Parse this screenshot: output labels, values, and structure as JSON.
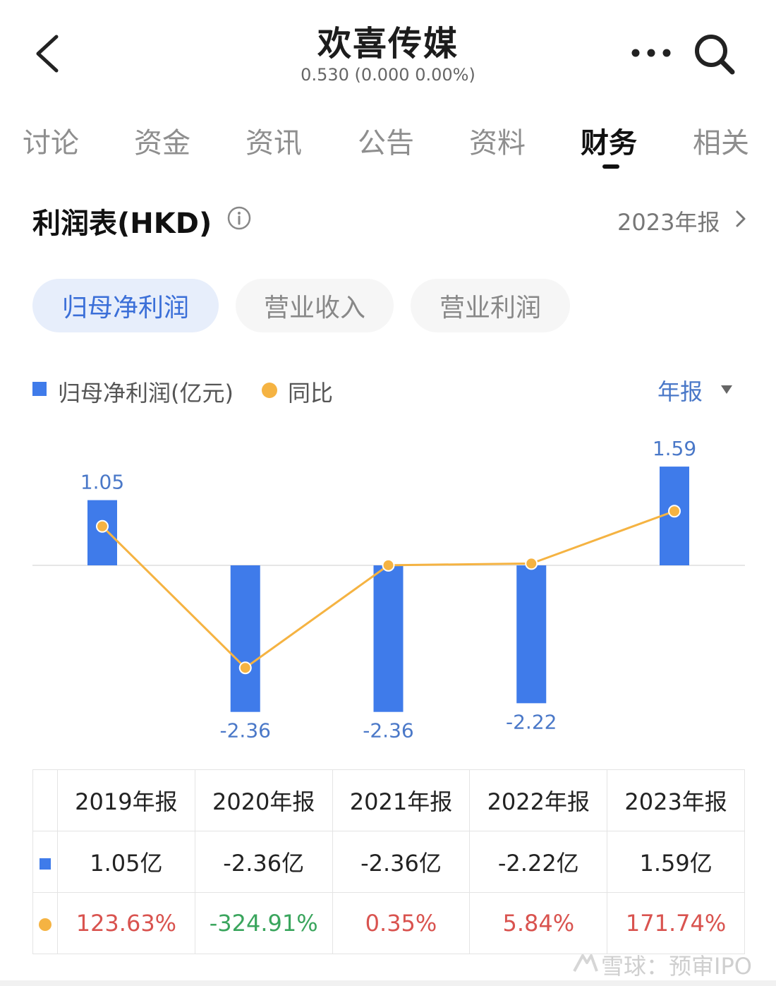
{
  "header": {
    "title": "欢喜传媒",
    "quote": "0.530 (0.000 0.00%)"
  },
  "tabs": [
    "讨论",
    "资金",
    "资讯",
    "公告",
    "资料",
    "财务",
    "相关"
  ],
  "active_tab": "财务",
  "section": {
    "title": "利润表(HKD)",
    "period": "2023年报"
  },
  "pills": [
    "归母净利润",
    "营业收入",
    "营业利润"
  ],
  "active_pill": "归母净利润",
  "legend": {
    "bar_label": "归母净利润(亿元)",
    "line_label": "同比",
    "frequency": "年报"
  },
  "colors": {
    "bar": "#3f7bea",
    "line": "#f5b342",
    "positive": "#d9534f",
    "negative": "#3aa55d",
    "accent": "#3b6fd8"
  },
  "chart_data": {
    "type": "bar",
    "categories": [
      "2019年报",
      "2020年报",
      "2021年报",
      "2022年报",
      "2023年报"
    ],
    "series": [
      {
        "name": "归母净利润(亿元)",
        "type": "bar",
        "values": [
          1.05,
          -2.36,
          -2.36,
          -2.22,
          1.59
        ],
        "labels": [
          "1.05",
          "-2.36",
          "-2.36",
          "-2.22",
          "1.59"
        ]
      },
      {
        "name": "同比",
        "type": "line",
        "values": [
          123.63,
          -324.91,
          0.35,
          5.84,
          171.74
        ]
      }
    ]
  },
  "table": {
    "headers": [
      "2019年报",
      "2020年报",
      "2021年报",
      "2022年报",
      "2023年报"
    ],
    "profit_row": [
      "1.05亿",
      "-2.36亿",
      "-2.36亿",
      "-2.22亿",
      "1.59亿"
    ],
    "yoy_row": [
      "123.63%",
      "-324.91%",
      "0.35%",
      "5.84%",
      "171.74%"
    ]
  },
  "watermark": "雪球：预审IPO"
}
